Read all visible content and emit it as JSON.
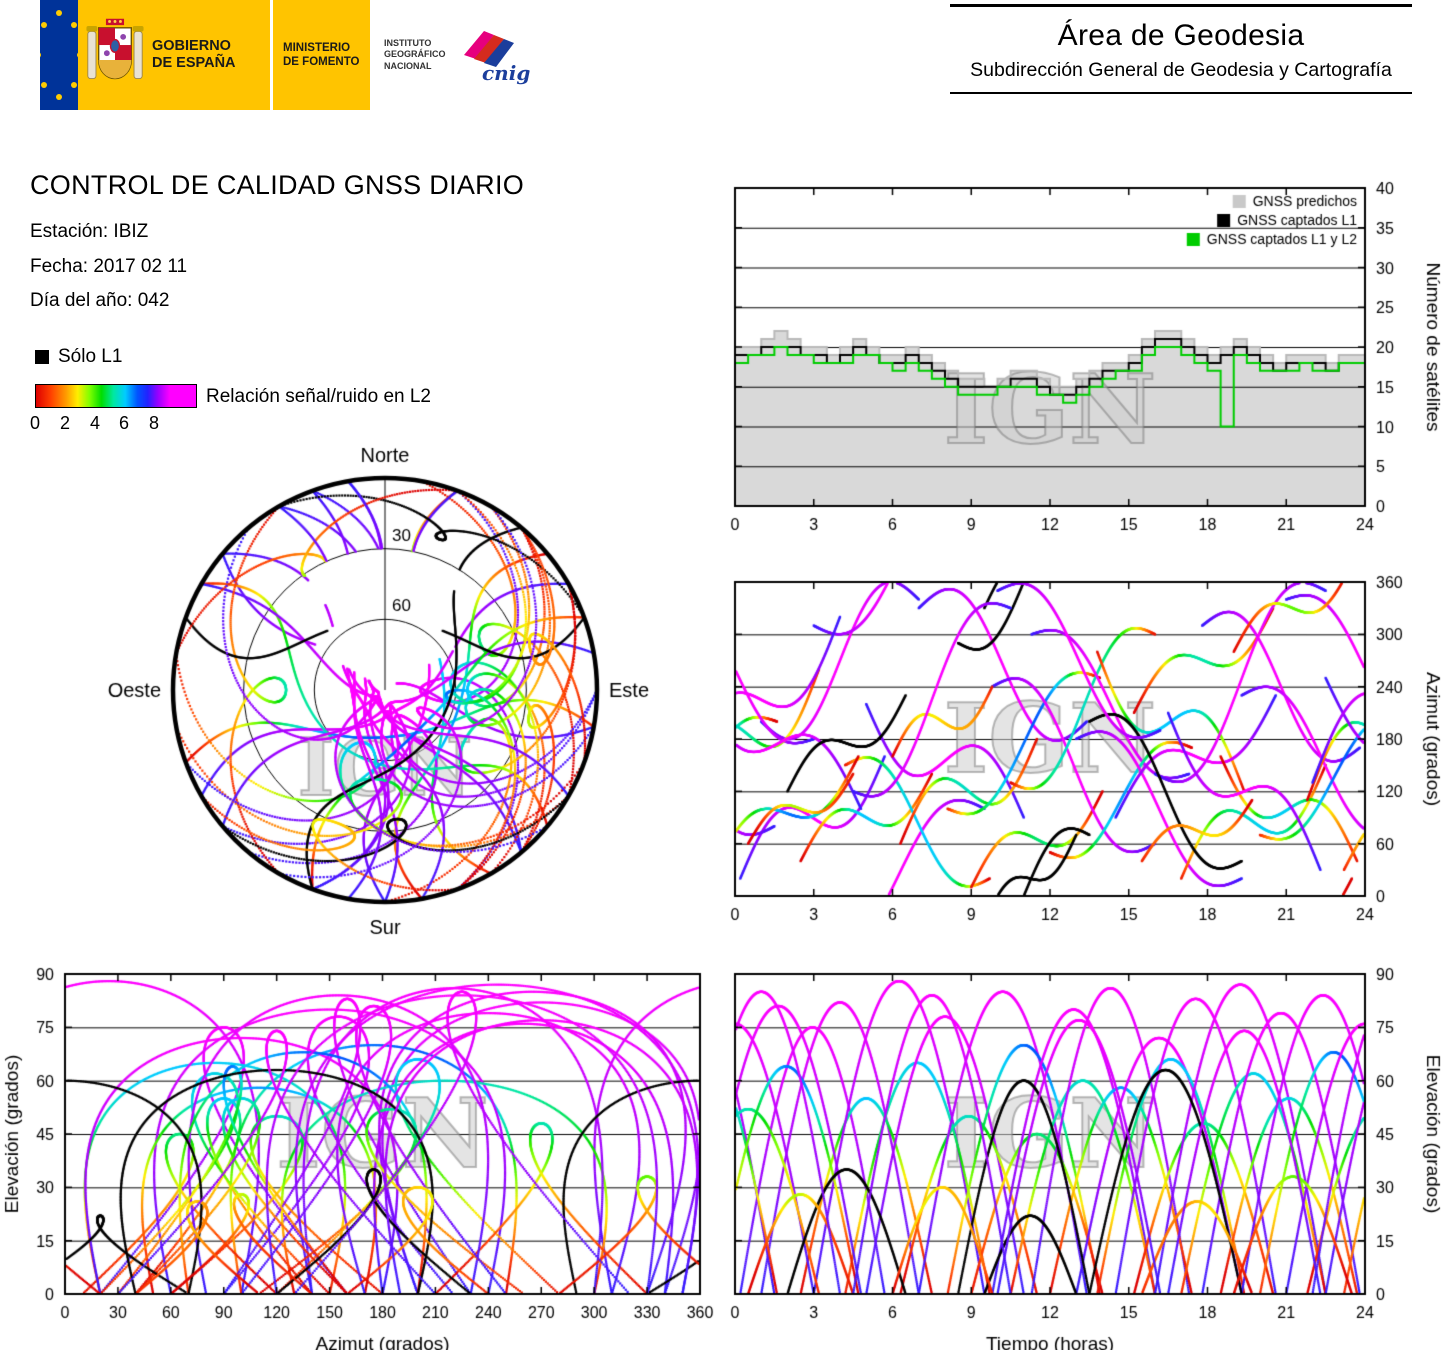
{
  "header": {
    "gobierno": {
      "line1": "GOBIERNO",
      "line2": "DE ESPAÑA"
    },
    "ministerio": {
      "line1": "MINISTERIO",
      "line2": "DE FOMENTO"
    },
    "ign": {
      "line1": "INSTITUTO",
      "line2": "GEOGRÁFICO",
      "line3": "NACIONAL"
    },
    "cnig_label": "cnig",
    "area_title": "Área de Geodesia",
    "area_subtitle": "Subdirección General de Geodesia y Cartografía"
  },
  "report": {
    "title": "CONTROL DE CALIDAD GNSS DIARIO",
    "station_line": "Estación: IBIZ",
    "date_line": "Fecha: 2017 02 11",
    "doy_line": "Día del año: 042"
  },
  "legend": {
    "solo_l1": "Sólo L1",
    "snr_label": "Relación señal/ruido en L2",
    "snr_ticks": [
      "0",
      "2",
      "4",
      "6",
      "8"
    ]
  },
  "chart_data": {
    "colormap": [
      [
        0,
        "#dd0000"
      ],
      [
        1,
        "#ff4000"
      ],
      [
        2,
        "#ff9900"
      ],
      [
        2.8,
        "#ffee00"
      ],
      [
        3.6,
        "#7fff00"
      ],
      [
        4.4,
        "#00dd00"
      ],
      [
        5.2,
        "#00e8a0"
      ],
      [
        6,
        "#00ccff"
      ],
      [
        6.8,
        "#0055ff"
      ],
      [
        7.5,
        "#2222ff"
      ],
      [
        8.2,
        "#9900ff"
      ],
      [
        9,
        "#ff00ff"
      ]
    ],
    "snr_scale": {
      "bar_min": 0,
      "bar_max": 10.75
    },
    "satellite_tracks": [
      [
        0.2,
        5.5,
        20,
        160,
        40,
        75,
        1
      ],
      [
        1.0,
        6.0,
        200,
        340,
        -50,
        82,
        1
      ],
      [
        2.5,
        5.0,
        40,
        140,
        30,
        55,
        0
      ],
      [
        3.0,
        6.5,
        310,
        460,
        -40,
        88,
        1
      ],
      [
        4.2,
        5.5,
        150,
        20,
        35,
        65,
        0
      ],
      [
        5.0,
        6.0,
        220,
        90,
        -45,
        78,
        1
      ],
      [
        6.3,
        5.2,
        60,
        180,
        40,
        50,
        0
      ],
      [
        7.0,
        6.4,
        330,
        200,
        50,
        85,
        1
      ],
      [
        8.1,
        5.8,
        100,
        250,
        -35,
        70,
        0
      ],
      [
        9.0,
        5.0,
        10,
        120,
        30,
        45,
        0
      ],
      [
        9.8,
        6.2,
        240,
        60,
        45,
        80,
        1
      ],
      [
        10.5,
        5.5,
        130,
        300,
        -40,
        60,
        0
      ],
      [
        11.3,
        6.0,
        300,
        140,
        35,
        86,
        1
      ],
      [
        12.0,
        5.4,
        50,
        170,
        -30,
        58,
        0
      ],
      [
        13.0,
        6.3,
        180,
        20,
        40,
        72,
        1
      ],
      [
        13.8,
        5.6,
        280,
        120,
        -45,
        66,
        0
      ],
      [
        14.5,
        6.1,
        90,
        230,
        35,
        83,
        1
      ],
      [
        15.2,
        5.3,
        210,
        330,
        30,
        48,
        0
      ],
      [
        16.0,
        6.5,
        140,
        350,
        -50,
        87,
        1
      ],
      [
        17.0,
        5.5,
        20,
        150,
        40,
        62,
        0
      ],
      [
        17.8,
        6.0,
        310,
        170,
        45,
        79,
        1
      ],
      [
        18.5,
        5.2,
        160,
        40,
        -35,
        55,
        0
      ],
      [
        19.3,
        6.2,
        230,
        80,
        40,
        84,
        1
      ],
      [
        20.0,
        5.6,
        70,
        200,
        -30,
        68,
        0
      ],
      [
        21.0,
        6.0,
        340,
        180,
        35,
        76,
        1
      ],
      [
        21.8,
        5.4,
        110,
        260,
        45,
        52,
        0
      ],
      [
        22.5,
        6.3,
        250,
        100,
        -40,
        81,
        1
      ],
      [
        23.2,
        5.5,
        30,
        160,
        30,
        64,
        0
      ],
      [
        2.0,
        4.5,
        120,
        230,
        25,
        35,
        2
      ],
      [
        8.5,
        5.0,
        290,
        430,
        -35,
        60,
        2
      ],
      [
        13.5,
        5.8,
        200,
        40,
        40,
        63,
        2
      ],
      [
        9.5,
        3.5,
        330,
        430,
        20,
        22,
        2
      ],
      [
        0.5,
        4.0,
        60,
        140,
        20,
        28,
        0
      ],
      [
        6.0,
        3.8,
        160,
        240,
        25,
        30,
        0
      ],
      [
        15.5,
        4.2,
        40,
        110,
        20,
        26,
        0
      ],
      [
        19.0,
        4.5,
        280,
        380,
        25,
        33,
        0
      ],
      [
        4.5,
        6.0,
        120,
        330,
        -45,
        84,
        1
      ],
      [
        10.0,
        6.2,
        350,
        190,
        40,
        77,
        1
      ],
      [
        16.5,
        5.8,
        210,
        30,
        -40,
        74,
        1
      ],
      [
        22.0,
        6.0,
        130,
        320,
        45,
        85,
        1
      ]
    ],
    "charts": [
      {
        "id": "c-sat",
        "type": "step",
        "xlim": [
          0,
          24
        ],
        "ylim": [
          0,
          40
        ],
        "xticks": [
          0,
          3,
          6,
          9,
          12,
          15,
          18,
          21,
          24
        ],
        "yticks": [
          0,
          5,
          10,
          15,
          20,
          25,
          30,
          35,
          40
        ],
        "xlabel": "",
        "ylabel": "Número de satélites",
        "yside": "right",
        "dt": 0.5,
        "watermark": "IGN",
        "colors": {
          "area": "#d9d9d9",
          "pred": "#b9b9b9",
          "l1": "#000000",
          "l1l2": "#00cc00"
        },
        "legend": [
          {
            "label": "GNSS predichos",
            "color": "#c9c9c9"
          },
          {
            "label": "GNSS captados L1",
            "color": "#000000"
          },
          {
            "label": "GNSS captados L1 y L2",
            "color": "#00cc00"
          }
        ],
        "series": {
          "predichos": [
            20,
            20,
            21,
            22,
            21,
            20,
            20,
            19,
            20,
            21,
            20,
            19,
            19,
            20,
            19,
            18,
            17,
            16,
            16,
            15,
            16,
            17,
            17,
            16,
            15,
            15,
            16,
            17,
            18,
            18,
            19,
            21,
            22,
            22,
            21,
            20,
            19,
            20,
            21,
            20,
            19,
            18,
            19,
            19,
            19,
            18,
            19,
            19
          ],
          "captados_l1": [
            19,
            19,
            20,
            20,
            20,
            19,
            19,
            18,
            19,
            20,
            19,
            18,
            18,
            19,
            18,
            17,
            16,
            15,
            15,
            15,
            15,
            16,
            16,
            15,
            14,
            14,
            15,
            16,
            17,
            17,
            18,
            20,
            21,
            21,
            20,
            19,
            18,
            19,
            20,
            19,
            18,
            17,
            18,
            18,
            18,
            17,
            18,
            18
          ],
          "captados_l1_y_l2": [
            18,
            19,
            19,
            20,
            19,
            19,
            18,
            18,
            18,
            19,
            19,
            18,
            17,
            18,
            17,
            16,
            15,
            14,
            14,
            14,
            15,
            15,
            15,
            14,
            14,
            13,
            14,
            15,
            16,
            17,
            17,
            19,
            20,
            20,
            19,
            18,
            17,
            10,
            19,
            18,
            17,
            17,
            17,
            18,
            17,
            17,
            18,
            18
          ]
        }
      },
      {
        "id": "c-az",
        "type": "tracks",
        "xkey": "t",
        "ykey": "az",
        "xlim": [
          0,
          24
        ],
        "ylim": [
          0,
          360
        ],
        "xticks": [
          0,
          3,
          6,
          9,
          12,
          15,
          18,
          21,
          24
        ],
        "yticks": [
          0,
          60,
          120,
          180,
          240,
          300,
          360
        ],
        "xlabel": "",
        "ylabel": "Azimut (grados)",
        "yside": "right",
        "watermark": "IGN"
      },
      {
        "id": "c-sky",
        "type": "sky",
        "labels": {
          "north": "Norte",
          "south": "Sur",
          "east": "Este",
          "west": "Oeste"
        },
        "ring_labels": [
          "30",
          "60"
        ],
        "rings_deg": [
          30,
          60
        ],
        "watermark": "IGN"
      },
      {
        "id": "c-elaz",
        "type": "tracks",
        "xkey": "az",
        "ykey": "el",
        "xlim": [
          0,
          360
        ],
        "ylim": [
          0,
          90
        ],
        "xticks": [
          0,
          30,
          60,
          90,
          120,
          150,
          180,
          210,
          240,
          270,
          300,
          330,
          360
        ],
        "yticks": [
          0,
          15,
          30,
          45,
          60,
          75,
          90
        ],
        "xlabel": "Azimut (grados)",
        "ylabel": "Elevación (grados)",
        "yside": "left",
        "watermark": "IGN"
      },
      {
        "id": "c-elt",
        "type": "tracks",
        "xkey": "t",
        "ykey": "el",
        "xlim": [
          0,
          24
        ],
        "ylim": [
          0,
          90
        ],
        "xticks": [
          0,
          3,
          6,
          9,
          12,
          15,
          18,
          21,
          24
        ],
        "yticks": [
          0,
          15,
          30,
          45,
          60,
          75,
          90
        ],
        "xlabel": "Tiempo (horas)",
        "ylabel": "Elevación (grados)",
        "yside": "right",
        "watermark": "IGN"
      }
    ]
  }
}
